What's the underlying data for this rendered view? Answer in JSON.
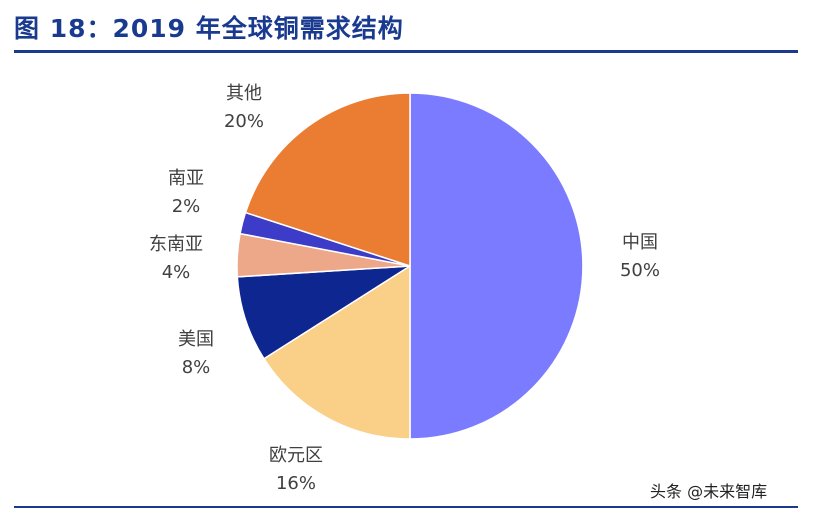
{
  "title": "图 18：2019 年全球铜需求结构",
  "watermark": "头条 @未来智库",
  "colors": {
    "rule": "#1a3a8f",
    "title": "#1a3a8f"
  },
  "chart_data": {
    "type": "pie",
    "slices": [
      {
        "label": "中国",
        "value": 50,
        "pct_label": "50%",
        "color": "#7b7bff"
      },
      {
        "label": "欧元区",
        "value": 16,
        "pct_label": "16%",
        "color": "#fad088"
      },
      {
        "label": "美国",
        "value": 8,
        "pct_label": "8%",
        "color": "#0d2690"
      },
      {
        "label": "东南亚",
        "value": 4,
        "pct_label": "4%",
        "color": "#eda88a"
      },
      {
        "label": "南亚",
        "value": 2,
        "pct_label": "2%",
        "color": "#3c3cc8"
      },
      {
        "label": "其他",
        "value": 20,
        "pct_label": "20%",
        "color": "#ea7d32"
      }
    ],
    "start": "12 o'clock",
    "direction": "clockwise",
    "legend": "none"
  }
}
